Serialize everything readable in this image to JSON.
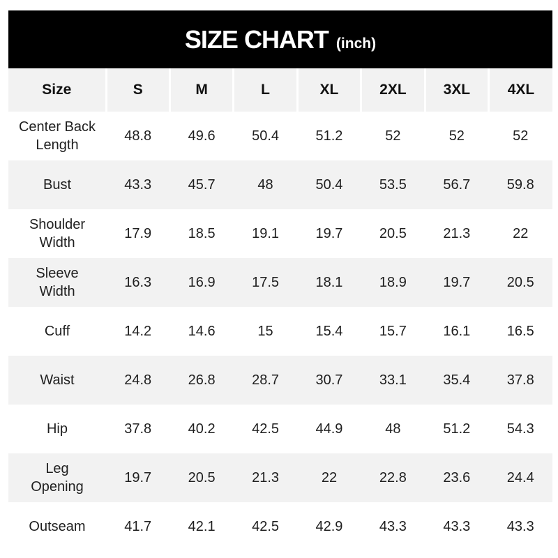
{
  "title": {
    "main": "SIZE CHART",
    "unit": "(inch)"
  },
  "chart_data": {
    "type": "table",
    "title": "SIZE CHART (inch)",
    "unit": "inch",
    "columns": [
      "Size",
      "S",
      "M",
      "L",
      "XL",
      "2XL",
      "3XL",
      "4XL"
    ],
    "rows": [
      {
        "label": "Center Back\nLength",
        "measurement": "Center Back Length",
        "values": [
          "48.8",
          "49.6",
          "50.4",
          "51.2",
          "52",
          "52",
          "52"
        ]
      },
      {
        "label": "Bust",
        "measurement": "Bust",
        "values": [
          "43.3",
          "45.7",
          "48",
          "50.4",
          "53.5",
          "56.7",
          "59.8"
        ]
      },
      {
        "label": "Shoulder\nWidth",
        "measurement": "Shoulder Width",
        "values": [
          "17.9",
          "18.5",
          "19.1",
          "19.7",
          "20.5",
          "21.3",
          "22"
        ]
      },
      {
        "label": "Sleeve\nWidth",
        "measurement": "Sleeve Width",
        "values": [
          "16.3",
          "16.9",
          "17.5",
          "18.1",
          "18.9",
          "19.7",
          "20.5"
        ]
      },
      {
        "label": "Cuff",
        "measurement": "Cuff",
        "values": [
          "14.2",
          "14.6",
          "15",
          "15.4",
          "15.7",
          "16.1",
          "16.5"
        ]
      },
      {
        "label": "Waist",
        "measurement": "Waist",
        "values": [
          "24.8",
          "26.8",
          "28.7",
          "30.7",
          "33.1",
          "35.4",
          "37.8"
        ]
      },
      {
        "label": "Hip",
        "measurement": "Hip",
        "values": [
          "37.8",
          "40.2",
          "42.5",
          "44.9",
          "48",
          "51.2",
          "54.3"
        ]
      },
      {
        "label": "Leg\nOpening",
        "measurement": "Leg Opening",
        "values": [
          "19.7",
          "20.5",
          "21.3",
          "22",
          "22.8",
          "23.6",
          "24.4"
        ]
      },
      {
        "label": "Outseam",
        "measurement": "Outseam",
        "values": [
          "41.7",
          "42.1",
          "42.5",
          "42.9",
          "43.3",
          "43.3",
          "43.3"
        ]
      }
    ]
  },
  "colors": {
    "title_bar_bg": "#000000",
    "title_text": "#ffffff",
    "alt_row_bg": "#f2f2f2",
    "separator": "#ffffff",
    "text": "#1f1f1f"
  }
}
